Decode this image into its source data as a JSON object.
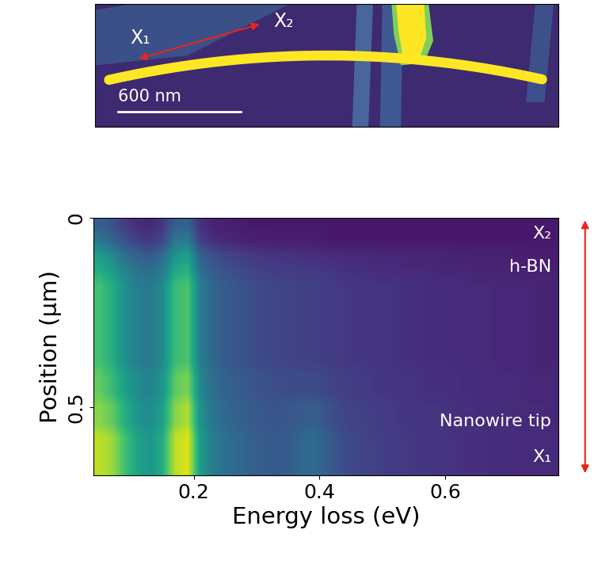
{
  "image_panel": {
    "labels": [
      "X₁",
      "X₂"
    ],
    "scale_bar": "600 nm"
  },
  "chart_data": {
    "type": "heatmap",
    "x_label": "Energy loss (eV)",
    "y_label": "Position (μm)",
    "xlim": [
      0.04,
      0.78
    ],
    "ylim": [
      0.68,
      0
    ],
    "xticks": [
      0.2,
      0.4,
      0.6
    ],
    "yticks": [
      0,
      0.5
    ],
    "annotations": [
      "X₂",
      "h-BN",
      "Nanowire tip",
      "X₁"
    ],
    "value_range": [
      0,
      1
    ],
    "cells": [
      [
        0.3,
        0.25,
        0.18,
        0.13,
        0.11,
        0.16,
        0.3,
        0.32,
        0.14,
        0.1,
        0.09,
        0.08,
        0.07,
        0.07,
        0.07,
        0.07,
        0.07,
        0.07,
        0.07,
        0.07,
        0.07,
        0.07,
        0.07,
        0.07,
        0.07,
        0.07,
        0.07,
        0.07,
        0.07,
        0.07,
        0.07,
        0.07,
        0.07,
        0.07,
        0.07,
        0.07,
        0.07
      ],
      [
        0.4,
        0.33,
        0.25,
        0.19,
        0.16,
        0.22,
        0.4,
        0.42,
        0.19,
        0.13,
        0.11,
        0.1,
        0.09,
        0.09,
        0.08,
        0.08,
        0.08,
        0.08,
        0.07,
        0.07,
        0.07,
        0.07,
        0.07,
        0.07,
        0.07,
        0.07,
        0.07,
        0.07,
        0.07,
        0.07,
        0.07,
        0.07,
        0.07,
        0.07,
        0.07,
        0.07,
        0.07
      ],
      [
        0.55,
        0.47,
        0.37,
        0.31,
        0.28,
        0.35,
        0.52,
        0.56,
        0.31,
        0.24,
        0.21,
        0.19,
        0.17,
        0.16,
        0.15,
        0.15,
        0.14,
        0.14,
        0.13,
        0.13,
        0.12,
        0.12,
        0.11,
        0.11,
        0.11,
        0.1,
        0.1,
        0.1,
        0.1,
        0.09,
        0.09,
        0.09,
        0.09,
        0.09,
        0.08,
        0.08,
        0.08
      ],
      [
        0.62,
        0.55,
        0.44,
        0.38,
        0.35,
        0.42,
        0.6,
        0.64,
        0.37,
        0.29,
        0.25,
        0.23,
        0.21,
        0.19,
        0.18,
        0.18,
        0.17,
        0.17,
        0.16,
        0.15,
        0.14,
        0.14,
        0.13,
        0.13,
        0.12,
        0.12,
        0.12,
        0.11,
        0.11,
        0.11,
        0.1,
        0.1,
        0.1,
        0.1,
        0.09,
        0.09,
        0.09
      ],
      [
        0.7,
        0.62,
        0.5,
        0.43,
        0.4,
        0.48,
        0.68,
        0.72,
        0.42,
        0.33,
        0.29,
        0.26,
        0.24,
        0.22,
        0.21,
        0.2,
        0.19,
        0.19,
        0.18,
        0.17,
        0.16,
        0.16,
        0.15,
        0.15,
        0.14,
        0.14,
        0.13,
        0.13,
        0.13,
        0.12,
        0.12,
        0.12,
        0.11,
        0.11,
        0.11,
        0.1,
        0.1
      ],
      [
        0.7,
        0.62,
        0.5,
        0.43,
        0.4,
        0.48,
        0.68,
        0.72,
        0.42,
        0.33,
        0.29,
        0.26,
        0.24,
        0.22,
        0.21,
        0.2,
        0.19,
        0.19,
        0.18,
        0.17,
        0.16,
        0.16,
        0.15,
        0.15,
        0.14,
        0.14,
        0.13,
        0.13,
        0.13,
        0.12,
        0.12,
        0.12,
        0.11,
        0.11,
        0.11,
        0.1,
        0.1
      ],
      [
        0.7,
        0.62,
        0.5,
        0.43,
        0.4,
        0.48,
        0.68,
        0.72,
        0.42,
        0.33,
        0.29,
        0.26,
        0.24,
        0.22,
        0.21,
        0.2,
        0.19,
        0.19,
        0.18,
        0.17,
        0.16,
        0.16,
        0.15,
        0.15,
        0.14,
        0.14,
        0.13,
        0.13,
        0.13,
        0.12,
        0.12,
        0.12,
        0.11,
        0.11,
        0.11,
        0.1,
        0.1
      ],
      [
        0.7,
        0.62,
        0.5,
        0.43,
        0.4,
        0.48,
        0.68,
        0.72,
        0.42,
        0.33,
        0.29,
        0.26,
        0.24,
        0.22,
        0.21,
        0.2,
        0.19,
        0.19,
        0.18,
        0.17,
        0.16,
        0.16,
        0.15,
        0.15,
        0.14,
        0.14,
        0.13,
        0.13,
        0.13,
        0.12,
        0.12,
        0.12,
        0.11,
        0.11,
        0.11,
        0.1,
        0.1
      ],
      [
        0.7,
        0.62,
        0.5,
        0.43,
        0.4,
        0.48,
        0.68,
        0.72,
        0.42,
        0.33,
        0.29,
        0.26,
        0.24,
        0.22,
        0.21,
        0.2,
        0.19,
        0.19,
        0.18,
        0.17,
        0.16,
        0.16,
        0.15,
        0.15,
        0.14,
        0.14,
        0.13,
        0.13,
        0.13,
        0.12,
        0.12,
        0.12,
        0.11,
        0.11,
        0.11,
        0.1,
        0.1
      ],
      [
        0.7,
        0.62,
        0.5,
        0.43,
        0.4,
        0.48,
        0.68,
        0.72,
        0.42,
        0.33,
        0.29,
        0.26,
        0.24,
        0.22,
        0.21,
        0.2,
        0.19,
        0.19,
        0.18,
        0.17,
        0.16,
        0.16,
        0.15,
        0.15,
        0.14,
        0.14,
        0.13,
        0.13,
        0.13,
        0.12,
        0.12,
        0.12,
        0.11,
        0.11,
        0.11,
        0.1,
        0.1
      ],
      [
        0.76,
        0.68,
        0.56,
        0.48,
        0.44,
        0.52,
        0.75,
        0.8,
        0.46,
        0.36,
        0.32,
        0.29,
        0.27,
        0.25,
        0.24,
        0.23,
        0.23,
        0.23,
        0.21,
        0.19,
        0.18,
        0.17,
        0.16,
        0.16,
        0.15,
        0.15,
        0.14,
        0.14,
        0.14,
        0.13,
        0.13,
        0.12,
        0.12,
        0.12,
        0.11,
        0.11,
        0.11
      ],
      [
        0.76,
        0.68,
        0.56,
        0.48,
        0.44,
        0.52,
        0.75,
        0.8,
        0.46,
        0.36,
        0.32,
        0.29,
        0.27,
        0.25,
        0.24,
        0.23,
        0.23,
        0.23,
        0.21,
        0.19,
        0.18,
        0.17,
        0.16,
        0.16,
        0.15,
        0.15,
        0.14,
        0.14,
        0.14,
        0.13,
        0.13,
        0.12,
        0.12,
        0.12,
        0.11,
        0.11,
        0.11
      ],
      [
        0.82,
        0.76,
        0.62,
        0.52,
        0.48,
        0.57,
        0.82,
        0.88,
        0.5,
        0.39,
        0.34,
        0.31,
        0.29,
        0.27,
        0.26,
        0.27,
        0.29,
        0.3,
        0.26,
        0.22,
        0.2,
        0.19,
        0.18,
        0.17,
        0.16,
        0.16,
        0.15,
        0.15,
        0.14,
        0.14,
        0.13,
        0.13,
        0.13,
        0.12,
        0.12,
        0.12,
        0.11
      ],
      [
        0.82,
        0.76,
        0.62,
        0.52,
        0.48,
        0.57,
        0.82,
        0.88,
        0.5,
        0.39,
        0.34,
        0.31,
        0.29,
        0.27,
        0.26,
        0.27,
        0.29,
        0.3,
        0.26,
        0.22,
        0.2,
        0.19,
        0.18,
        0.17,
        0.16,
        0.16,
        0.15,
        0.15,
        0.14,
        0.14,
        0.13,
        0.13,
        0.13,
        0.12,
        0.12,
        0.12,
        0.11
      ],
      [
        0.9,
        0.85,
        0.7,
        0.58,
        0.52,
        0.62,
        0.9,
        0.95,
        0.55,
        0.42,
        0.37,
        0.34,
        0.31,
        0.29,
        0.28,
        0.29,
        0.33,
        0.35,
        0.3,
        0.25,
        0.22,
        0.2,
        0.19,
        0.18,
        0.17,
        0.16,
        0.16,
        0.15,
        0.15,
        0.14,
        0.14,
        0.13,
        0.13,
        0.13,
        0.12,
        0.12,
        0.12
      ],
      [
        0.9,
        0.85,
        0.7,
        0.58,
        0.52,
        0.62,
        0.9,
        0.95,
        0.55,
        0.42,
        0.37,
        0.34,
        0.31,
        0.29,
        0.28,
        0.29,
        0.33,
        0.35,
        0.3,
        0.25,
        0.22,
        0.2,
        0.19,
        0.18,
        0.17,
        0.16,
        0.16,
        0.15,
        0.15,
        0.14,
        0.14,
        0.13,
        0.13,
        0.13,
        0.12,
        0.12,
        0.12
      ],
      [
        0.9,
        0.85,
        0.7,
        0.58,
        0.52,
        0.62,
        0.9,
        0.95,
        0.55,
        0.42,
        0.37,
        0.34,
        0.31,
        0.29,
        0.28,
        0.29,
        0.33,
        0.35,
        0.3,
        0.25,
        0.22,
        0.2,
        0.19,
        0.18,
        0.17,
        0.16,
        0.16,
        0.15,
        0.15,
        0.14,
        0.14,
        0.13,
        0.13,
        0.13,
        0.12,
        0.12,
        0.12
      ]
    ]
  }
}
